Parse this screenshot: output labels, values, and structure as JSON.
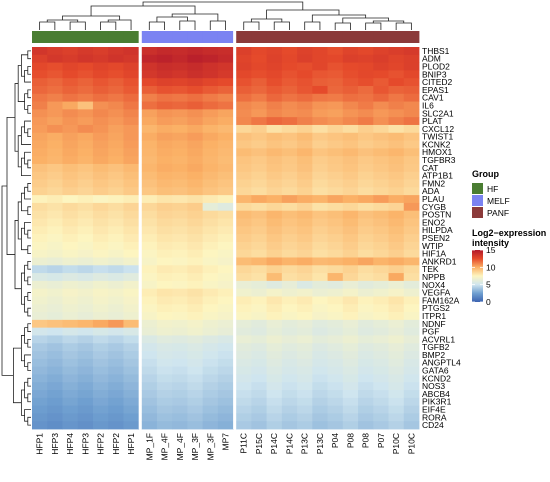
{
  "chart_data": {
    "type": "heatmap",
    "columns": [
      "HFP1",
      "HFP3",
      "HFP4",
      "HFP3",
      "HFP2",
      "HFP2",
      "HFP1",
      "MP_1F",
      "MP_4F",
      "MP_4F",
      "MP_3F",
      "MP_3F",
      "MP7",
      "P11C",
      "P15C",
      "P14C",
      "P14C",
      "P13C",
      "P13C",
      "P04",
      "P08",
      "P08",
      "P07",
      "P10C",
      "P10C"
    ],
    "column_groups": [
      "HF",
      "HF",
      "HF",
      "HF",
      "HF",
      "HF",
      "HF",
      "MELF",
      "MELF",
      "MELF",
      "MELF",
      "MELF",
      "MELF",
      "PANF",
      "PANF",
      "PANF",
      "PANF",
      "PANF",
      "PANF",
      "PANF",
      "PANF",
      "PANF",
      "PANF",
      "PANF",
      "PANF"
    ],
    "genes": [
      "THBS1",
      "ADM",
      "PLOD2",
      "BNIP3",
      "CITED2",
      "EPAS1",
      "CAV1",
      "IL6",
      "SLC2A1",
      "PLAT",
      "CXCL12",
      "TWIST1",
      "KCNK2",
      "HMOX1",
      "TGFBR3",
      "CAT",
      "ATP1B1",
      "FMN2",
      "ADA",
      "PLAU",
      "CYGB",
      "POSTN",
      "ENO2",
      "HILPDA",
      "PSEN2",
      "WTIP",
      "HIF1A",
      "ANKRD1",
      "TEK",
      "NPPB",
      "NOX4",
      "VEGFA",
      "FAM162A",
      "PTGS2",
      "ITPR1",
      "NDNF",
      "PGF",
      "ACVRL1",
      "TGFB2",
      "BMP2",
      "ANGPTL4",
      "GATA6",
      "KCND2",
      "NOS3",
      "ABCB4",
      "PIK3R1",
      "EIF4E",
      "RORA",
      "CD24"
    ],
    "group_legend": {
      "title": "Group",
      "items": [
        {
          "name": "HF",
          "color": "#4a7d32"
        },
        {
          "name": "MELF",
          "color": "#7b83f2"
        },
        {
          "name": "PANF",
          "color": "#8b3a3a"
        }
      ]
    },
    "color_legend": {
      "title": "Log2−expression intensity",
      "ticks": [
        15,
        10,
        5,
        0
      ],
      "range": [
        0,
        15
      ],
      "colors": [
        "#3b62b0",
        "#6f9fd0",
        "#cfe5ef",
        "#fdf5c0",
        "#fbb166",
        "#e54a2b",
        "#b2182b"
      ]
    },
    "values": [
      [
        13.5,
        13.2,
        13.0,
        13.3,
        13.1,
        13.4,
        13.6,
        13.8,
        14.1,
        14.0,
        14.2,
        14.0,
        13.9,
        13.0,
        12.6,
        12.8,
        12.5,
        12.9,
        12.7,
        12.4,
        12.8,
        12.6,
        12.9,
        13.1,
        13.3
      ],
      [
        13.0,
        13.4,
        13.2,
        13.5,
        13.3,
        13.6,
        13.4,
        14.3,
        14.5,
        14.2,
        14.6,
        14.4,
        14.1,
        12.8,
        12.5,
        12.9,
        12.6,
        13.0,
        12.7,
        12.6,
        13.0,
        12.9,
        13.1,
        12.8,
        13.0
      ],
      [
        12.6,
        12.4,
        12.7,
        12.5,
        12.8,
        12.6,
        12.9,
        13.6,
        13.9,
        13.8,
        14.0,
        13.7,
        13.5,
        12.9,
        12.6,
        12.8,
        12.5,
        12.4,
        12.7,
        12.3,
        12.5,
        12.6,
        12.9,
        12.7,
        13.0
      ],
      [
        12.4,
        12.2,
        12.5,
        12.3,
        12.6,
        12.4,
        12.7,
        13.4,
        13.7,
        13.5,
        13.8,
        13.6,
        13.3,
        12.6,
        12.4,
        12.6,
        12.3,
        12.5,
        12.2,
        12.1,
        12.4,
        12.6,
        12.5,
        12.3,
        12.6
      ],
      [
        12.0,
        11.8,
        12.1,
        11.9,
        12.2,
        12.0,
        12.3,
        12.6,
        12.9,
        12.8,
        13.0,
        12.7,
        12.5,
        12.3,
        12.0,
        12.4,
        12.1,
        12.3,
        12.0,
        11.9,
        12.2,
        12.4,
        12.1,
        12.5,
        12.3
      ],
      [
        11.8,
        11.6,
        11.9,
        11.7,
        12.0,
        11.8,
        12.1,
        12.0,
        12.3,
        12.2,
        12.4,
        12.1,
        11.9,
        12.0,
        11.8,
        12.1,
        11.9,
        12.2,
        12.5,
        11.8,
        12.0,
        11.7,
        12.2,
        11.9,
        12.0
      ],
      [
        11.4,
        11.2,
        11.5,
        11.3,
        11.6,
        11.4,
        11.7,
        11.2,
        11.5,
        11.4,
        11.6,
        11.3,
        11.1,
        11.6,
        11.3,
        11.8,
        11.5,
        11.7,
        11.4,
        11.3,
        11.6,
        11.5,
        11.8,
        11.4,
        11.7
      ],
      [
        11.2,
        10.6,
        10.2,
        9.4,
        10.8,
        11.0,
        11.4,
        11.6,
        11.9,
        11.8,
        12.0,
        11.7,
        11.5,
        11.0,
        10.8,
        11.2,
        10.9,
        11.1,
        10.7,
        10.6,
        11.0,
        11.3,
        10.9,
        11.2,
        11.0
      ],
      [
        10.8,
        10.6,
        10.9,
        10.7,
        11.0,
        10.8,
        11.1,
        10.4,
        10.7,
        10.6,
        10.8,
        10.5,
        10.3,
        10.9,
        10.6,
        11.0,
        10.8,
        10.9,
        10.5,
        10.4,
        10.7,
        10.9,
        10.6,
        10.8,
        11.0
      ],
      [
        10.6,
        10.4,
        10.7,
        10.5,
        10.8,
        10.6,
        10.9,
        10.2,
        10.5,
        10.4,
        10.6,
        10.3,
        10.1,
        11.0,
        11.4,
        11.8,
        11.6,
        11.2,
        10.9,
        10.7,
        11.0,
        11.3,
        10.8,
        11.2,
        11.5
      ],
      [
        10.5,
        10.8,
        10.6,
        10.9,
        10.7,
        10.4,
        10.6,
        9.8,
        10.1,
        10.0,
        10.2,
        9.9,
        9.7,
        8.6,
        8.9,
        8.2,
        8.5,
        8.8,
        8.3,
        8.7,
        8.4,
        8.9,
        8.6,
        8.2,
        8.5
      ],
      [
        10.3,
        10.1,
        10.4,
        10.2,
        10.5,
        10.3,
        10.6,
        10.1,
        10.4,
        10.3,
        10.5,
        10.2,
        10.0,
        9.4,
        9.2,
        9.5,
        9.3,
        9.6,
        9.1,
        9.3,
        9.5,
        9.2,
        9.4,
        9.6,
        9.3
      ],
      [
        10.2,
        10.0,
        10.3,
        10.1,
        10.4,
        10.2,
        10.5,
        9.9,
        10.2,
        10.1,
        10.3,
        10.0,
        9.8,
        9.2,
        9.0,
        9.3,
        9.1,
        9.4,
        8.9,
        9.1,
        9.3,
        9.0,
        9.2,
        9.4,
        9.1
      ],
      [
        10.1,
        9.9,
        10.2,
        10.0,
        10.3,
        10.1,
        10.4,
        9.8,
        10.1,
        10.0,
        10.2,
        9.9,
        9.7,
        9.6,
        9.4,
        9.7,
        9.5,
        9.8,
        9.3,
        9.5,
        9.7,
        9.4,
        9.6,
        9.8,
        9.5
      ],
      [
        10.0,
        9.8,
        10.1,
        9.9,
        10.2,
        10.0,
        10.3,
        9.7,
        10.0,
        9.9,
        10.1,
        9.8,
        9.6,
        9.3,
        9.1,
        9.4,
        9.2,
        9.5,
        9.0,
        9.2,
        9.4,
        9.1,
        9.3,
        9.5,
        9.2
      ],
      [
        9.4,
        9.2,
        9.5,
        9.3,
        9.6,
        9.4,
        9.7,
        9.8,
        10.1,
        10.0,
        10.2,
        9.9,
        9.7,
        9.2,
        9.0,
        9.3,
        9.1,
        9.4,
        8.9,
        9.1,
        9.3,
        9.0,
        9.2,
        9.4,
        9.1
      ],
      [
        9.2,
        9.0,
        9.3,
        9.1,
        9.4,
        9.2,
        9.5,
        9.6,
        9.9,
        9.8,
        10.0,
        9.7,
        9.5,
        9.0,
        8.8,
        9.1,
        8.9,
        9.2,
        8.7,
        8.9,
        9.1,
        8.8,
        9.0,
        9.2,
        8.9
      ],
      [
        9.0,
        8.8,
        9.1,
        8.9,
        9.2,
        9.0,
        9.3,
        9.4,
        9.7,
        9.6,
        9.8,
        9.5,
        9.3,
        8.8,
        8.6,
        8.9,
        8.7,
        9.0,
        8.5,
        8.7,
        8.9,
        8.6,
        8.8,
        9.0,
        8.7
      ],
      [
        8.8,
        8.6,
        8.9,
        8.7,
        9.0,
        8.8,
        9.1,
        9.2,
        9.5,
        9.4,
        9.6,
        9.3,
        9.1,
        8.6,
        8.4,
        8.7,
        8.5,
        8.8,
        8.3,
        8.5,
        8.7,
        8.4,
        8.6,
        8.8,
        8.5
      ],
      [
        7.6,
        7.8,
        7.5,
        7.7,
        7.4,
        7.6,
        7.8,
        7.8,
        8.1,
        8.0,
        8.2,
        7.9,
        7.7,
        9.8,
        10.2,
        10.0,
        10.4,
        10.1,
        9.9,
        10.3,
        10.0,
        10.2,
        10.5,
        10.1,
        10.3
      ],
      [
        8.4,
        8.2,
        8.5,
        8.3,
        8.6,
        8.4,
        8.7,
        8.6,
        8.9,
        8.8,
        9.0,
        6.2,
        5.8,
        8.5,
        8.3,
        8.6,
        8.4,
        8.7,
        8.2,
        8.4,
        8.6,
        8.3,
        8.5,
        8.7,
        10.6
      ],
      [
        8.2,
        8.0,
        8.3,
        8.1,
        8.4,
        8.2,
        8.5,
        8.4,
        8.7,
        8.6,
        8.8,
        8.5,
        8.3,
        9.6,
        9.4,
        9.8,
        9.5,
        9.7,
        9.3,
        9.5,
        9.8,
        9.4,
        9.6,
        9.9,
        9.5
      ],
      [
        8.0,
        7.8,
        8.1,
        7.9,
        8.2,
        8.0,
        8.3,
        8.2,
        8.5,
        8.4,
        8.6,
        8.3,
        8.1,
        9.4,
        9.2,
        9.6,
        9.3,
        9.5,
        9.1,
        9.3,
        9.6,
        9.2,
        9.4,
        9.7,
        9.3
      ],
      [
        7.8,
        7.6,
        7.9,
        7.7,
        8.0,
        7.8,
        8.1,
        8.0,
        8.3,
        8.2,
        8.4,
        8.1,
        7.9,
        9.2,
        9.0,
        9.4,
        9.1,
        9.3,
        8.9,
        9.1,
        9.4,
        9.0,
        9.2,
        9.5,
        9.1
      ],
      [
        7.6,
        7.4,
        7.7,
        7.5,
        7.8,
        7.6,
        7.9,
        7.8,
        8.1,
        8.0,
        8.2,
        7.9,
        7.7,
        9.0,
        8.8,
        9.2,
        8.9,
        9.1,
        8.7,
        8.9,
        9.2,
        8.8,
        9.0,
        9.3,
        8.9
      ],
      [
        7.4,
        7.2,
        7.5,
        7.3,
        7.6,
        7.4,
        7.7,
        7.6,
        7.9,
        7.8,
        8.0,
        7.7,
        7.5,
        8.8,
        8.6,
        9.0,
        8.7,
        8.9,
        8.5,
        8.7,
        9.0,
        8.6,
        8.8,
        9.1,
        8.7
      ],
      [
        7.2,
        7.0,
        7.3,
        7.1,
        7.4,
        7.2,
        7.5,
        7.4,
        7.7,
        7.6,
        7.8,
        7.5,
        7.3,
        8.6,
        8.4,
        8.8,
        8.5,
        8.7,
        8.3,
        8.5,
        8.8,
        8.4,
        8.6,
        8.9,
        8.5
      ],
      [
        6.6,
        6.4,
        6.7,
        6.5,
        6.8,
        6.6,
        6.9,
        7.2,
        7.5,
        7.4,
        7.6,
        7.3,
        7.1,
        9.6,
        9.8,
        10.2,
        9.9,
        10.1,
        9.7,
        9.8,
        10.0,
        10.3,
        9.9,
        10.1,
        9.8
      ],
      [
        4.6,
        4.4,
        4.7,
        4.5,
        4.8,
        4.6,
        4.9,
        7.6,
        7.9,
        7.8,
        8.0,
        7.7,
        7.5,
        8.6,
        8.4,
        8.8,
        8.5,
        8.7,
        8.3,
        8.5,
        8.8,
        8.4,
        8.6,
        8.9,
        8.5
      ],
      [
        5.6,
        5.4,
        5.7,
        5.5,
        5.8,
        5.6,
        5.9,
        7.4,
        7.7,
        7.6,
        7.8,
        7.5,
        7.3,
        8.4,
        8.2,
        9.6,
        8.3,
        8.5,
        8.1,
        9.8,
        8.6,
        8.2,
        8.4,
        10.2,
        8.3
      ],
      [
        6.6,
        6.4,
        6.7,
        6.5,
        6.8,
        6.6,
        6.9,
        7.2,
        7.5,
        7.4,
        7.6,
        7.3,
        7.1,
        6.4,
        6.2,
        5.8,
        6.3,
        5.6,
        6.1,
        5.9,
        6.4,
        6.0,
        6.2,
        6.5,
        6.1
      ],
      [
        7.0,
        6.8,
        7.1,
        6.9,
        7.2,
        7.0,
        7.3,
        7.8,
        8.1,
        8.0,
        8.2,
        7.9,
        7.7,
        6.8,
        6.6,
        7.0,
        6.7,
        6.9,
        6.5,
        6.7,
        7.0,
        6.6,
        6.8,
        7.1,
        6.7
      ],
      [
        6.8,
        6.6,
        6.9,
        6.7,
        7.0,
        6.8,
        7.1,
        7.6,
        7.9,
        7.8,
        8.0,
        7.7,
        7.5,
        7.8,
        7.6,
        8.0,
        7.7,
        7.9,
        7.5,
        7.7,
        8.0,
        7.6,
        7.8,
        8.1,
        7.7
      ],
      [
        6.6,
        6.4,
        6.7,
        6.5,
        6.8,
        6.6,
        6.9,
        7.4,
        7.7,
        7.6,
        7.8,
        7.5,
        7.3,
        7.6,
        7.4,
        7.8,
        7.5,
        7.7,
        7.3,
        7.5,
        7.8,
        7.4,
        7.6,
        7.9,
        7.5
      ],
      [
        6.4,
        6.2,
        6.5,
        6.3,
        6.6,
        6.4,
        6.7,
        7.2,
        7.5,
        7.4,
        7.6,
        7.3,
        7.1,
        7.4,
        7.2,
        7.6,
        7.3,
        7.5,
        7.1,
        7.3,
        7.6,
        7.2,
        7.4,
        7.7,
        7.3
      ],
      [
        9.2,
        9.4,
        9.6,
        9.8,
        10.2,
        10.6,
        9.6,
        6.6,
        6.9,
        6.8,
        7.0,
        6.7,
        6.5,
        6.2,
        6.0,
        6.4,
        6.1,
        6.3,
        5.9,
        6.1,
        6.4,
        6.0,
        6.2,
        6.5,
        6.1
      ],
      [
        5.2,
        5.0,
        5.3,
        5.1,
        5.4,
        5.2,
        5.5,
        6.4,
        6.7,
        6.6,
        6.8,
        6.5,
        6.3,
        6.0,
        5.8,
        6.2,
        5.9,
        6.1,
        5.7,
        5.9,
        6.2,
        5.8,
        6.0,
        6.3,
        5.9
      ],
      [
        4.4,
        4.2,
        4.5,
        4.3,
        4.6,
        4.4,
        4.7,
        5.6,
        5.9,
        5.8,
        6.0,
        5.7,
        5.5,
        6.4,
        6.2,
        6.6,
        6.3,
        6.5,
        6.1,
        6.3,
        6.6,
        6.2,
        6.4,
        6.7,
        6.3
      ],
      [
        4.0,
        3.8,
        4.1,
        3.9,
        4.2,
        4.0,
        4.3,
        5.2,
        5.5,
        5.4,
        5.6,
        5.3,
        5.1,
        6.0,
        5.8,
        6.2,
        5.9,
        6.1,
        5.7,
        5.9,
        6.2,
        5.8,
        6.0,
        6.3,
        5.9
      ],
      [
        3.8,
        3.6,
        3.9,
        3.7,
        4.0,
        3.8,
        4.1,
        5.0,
        5.3,
        5.2,
        5.4,
        5.1,
        4.9,
        5.8,
        5.6,
        6.0,
        5.7,
        5.9,
        5.5,
        5.7,
        6.0,
        5.6,
        5.8,
        6.1,
        5.7
      ],
      [
        3.6,
        3.4,
        3.7,
        3.5,
        3.8,
        3.6,
        3.9,
        4.8,
        5.1,
        5.0,
        5.2,
        4.9,
        4.7,
        5.6,
        5.4,
        5.8,
        5.5,
        5.7,
        5.3,
        5.5,
        5.8,
        5.4,
        5.6,
        5.9,
        5.5
      ],
      [
        3.4,
        3.2,
        3.5,
        3.3,
        3.6,
        3.4,
        3.7,
        4.6,
        4.9,
        4.8,
        5.0,
        4.7,
        4.5,
        5.4,
        5.2,
        5.6,
        5.3,
        5.5,
        5.1,
        5.3,
        5.6,
        5.2,
        5.4,
        5.7,
        5.3
      ],
      [
        3.2,
        3.0,
        3.3,
        3.1,
        3.4,
        3.2,
        3.5,
        4.4,
        4.7,
        4.6,
        4.8,
        4.5,
        4.3,
        5.2,
        5.0,
        5.4,
        5.1,
        5.3,
        4.9,
        5.1,
        5.4,
        5.0,
        5.2,
        5.5,
        5.1
      ],
      [
        3.0,
        2.8,
        3.1,
        2.9,
        3.2,
        3.0,
        3.3,
        4.2,
        4.5,
        4.4,
        4.6,
        4.3,
        4.1,
        5.0,
        4.8,
        5.2,
        4.9,
        5.1,
        4.7,
        4.9,
        5.2,
        4.8,
        5.0,
        5.3,
        4.9
      ],
      [
        2.8,
        2.6,
        2.9,
        2.7,
        3.0,
        2.8,
        3.1,
        4.0,
        4.3,
        4.2,
        4.4,
        4.1,
        3.9,
        4.8,
        4.6,
        5.0,
        4.7,
        4.9,
        4.5,
        4.7,
        5.0,
        4.6,
        4.8,
        5.1,
        4.7
      ],
      [
        2.6,
        2.4,
        2.7,
        2.5,
        2.8,
        2.6,
        2.9,
        3.8,
        4.1,
        4.0,
        4.2,
        3.9,
        3.7,
        4.6,
        4.4,
        4.8,
        4.5,
        4.7,
        4.3,
        4.5,
        4.8,
        4.4,
        4.6,
        4.9,
        4.5
      ],
      [
        2.4,
        2.2,
        2.5,
        2.3,
        2.6,
        2.4,
        2.7,
        3.6,
        3.9,
        3.8,
        4.0,
        3.7,
        3.5,
        4.4,
        4.2,
        4.6,
        4.3,
        4.5,
        4.1,
        4.3,
        4.6,
        4.2,
        4.4,
        4.7,
        4.3
      ],
      [
        2.2,
        2.0,
        2.3,
        2.1,
        2.4,
        2.2,
        2.5,
        3.4,
        3.7,
        3.6,
        3.8,
        3.5,
        3.3,
        4.2,
        4.0,
        4.4,
        4.1,
        4.3,
        3.9,
        4.1,
        4.4,
        4.0,
        4.2,
        4.5,
        4.1
      ],
      [
        2.0,
        1.8,
        2.1,
        1.9,
        2.2,
        2.0,
        2.3,
        3.2,
        3.5,
        3.4,
        3.6,
        3.3,
        3.1,
        4.0,
        3.8,
        4.2,
        3.9,
        4.1,
        3.7,
        3.9,
        4.2,
        3.8,
        4.0,
        4.3,
        3.9
      ]
    ]
  }
}
